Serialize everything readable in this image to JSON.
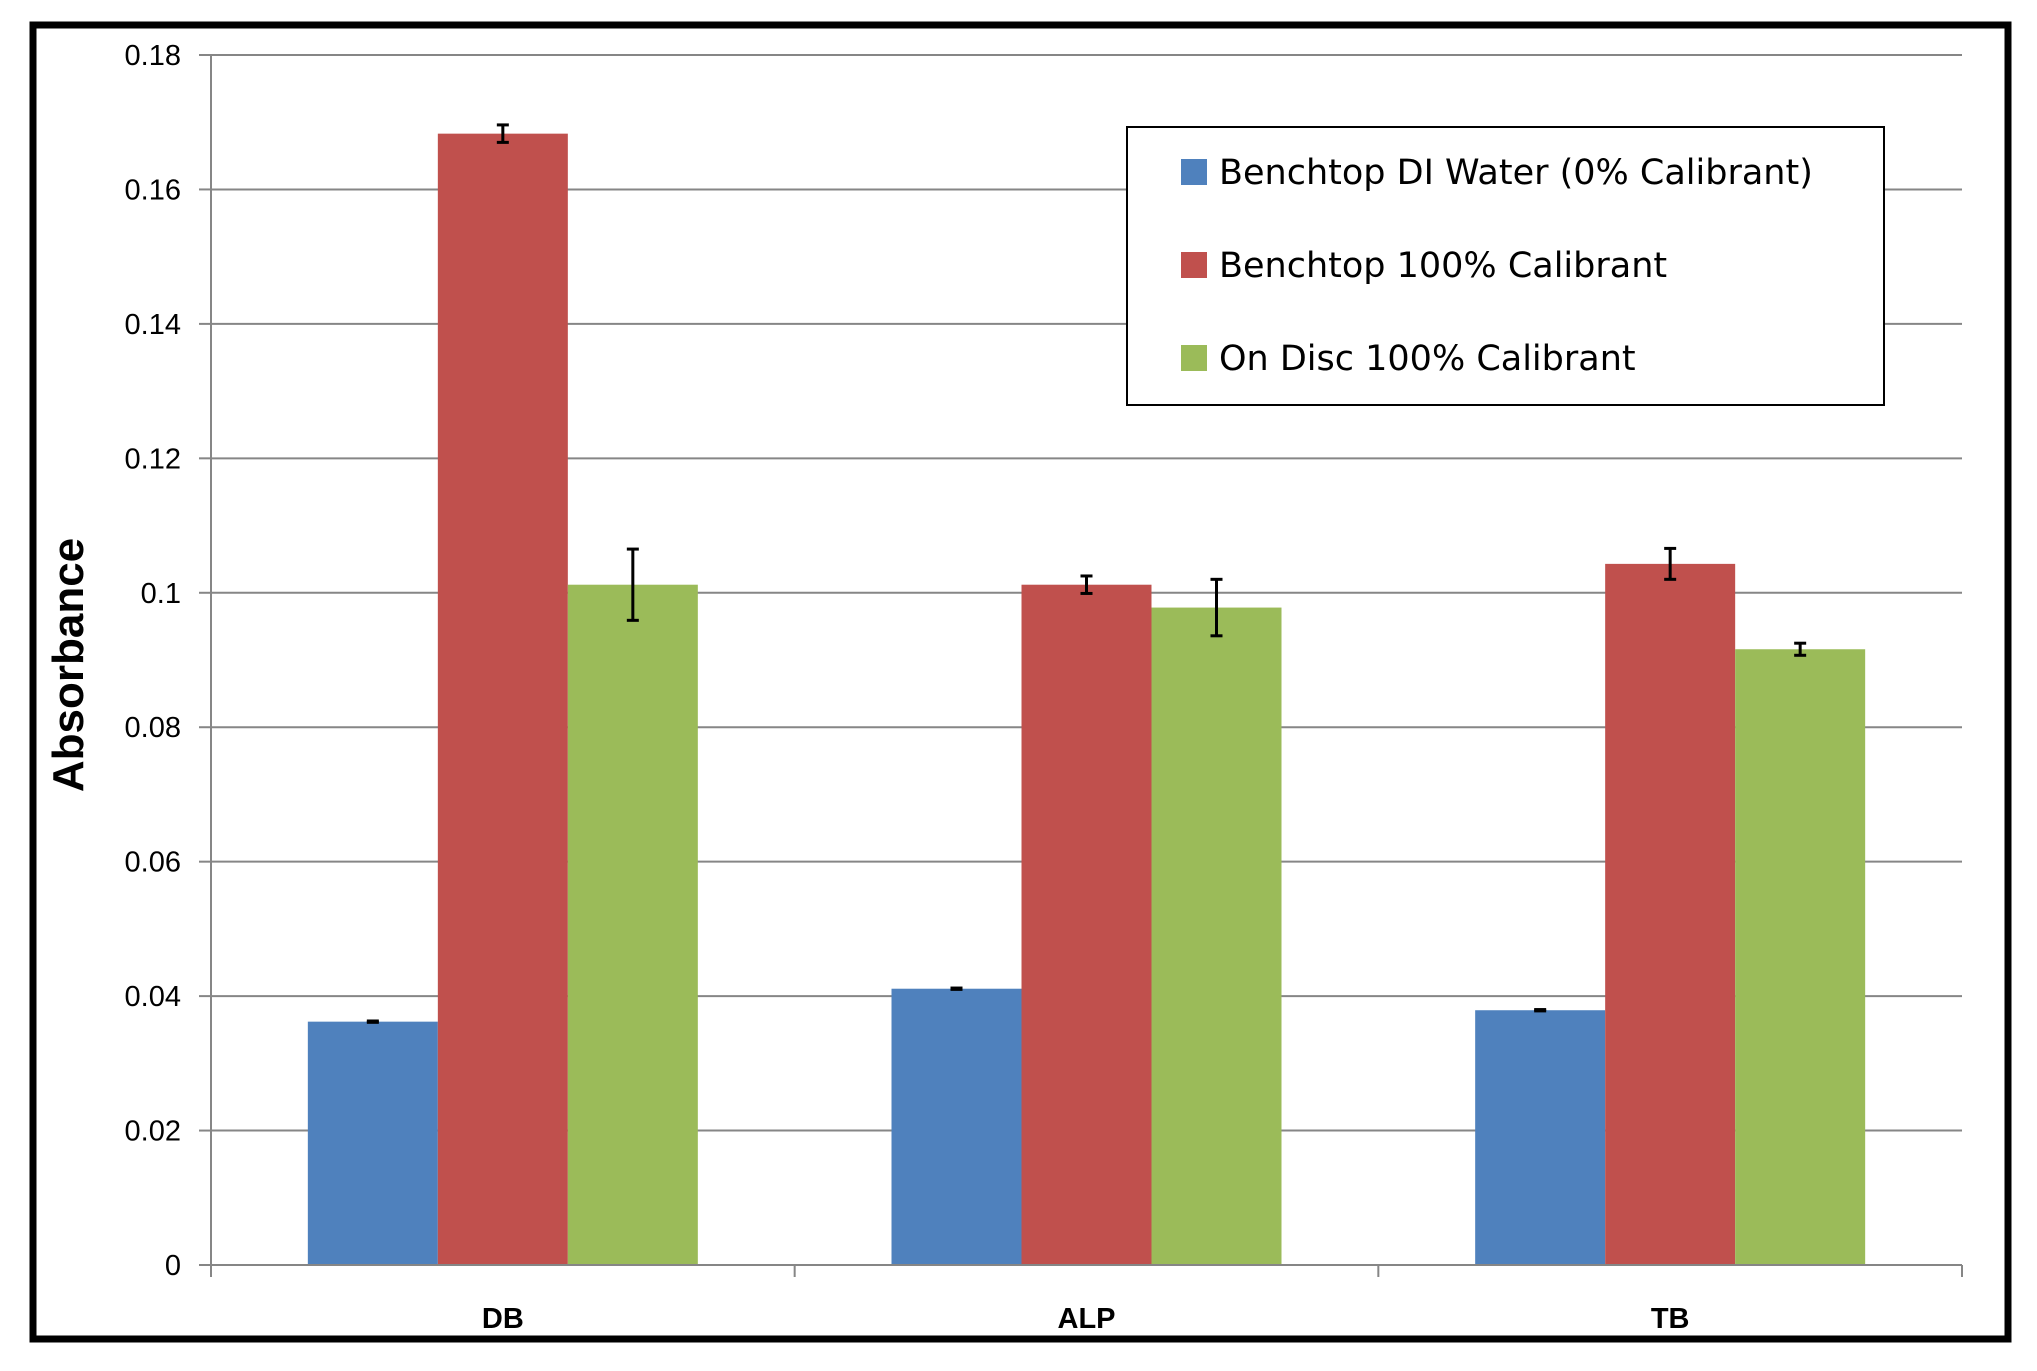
{
  "chart_data": {
    "type": "bar",
    "title": "",
    "xlabel": "",
    "ylabel": "Absorbance",
    "ylim": [
      0,
      0.18
    ],
    "yticks": [
      "0",
      "0.02",
      "0.04",
      "0.06",
      "0.08",
      "0.1",
      "0.12",
      "0.14",
      "0.16",
      "0.18"
    ],
    "grid": true,
    "legend_position": "top-right",
    "categories": [
      "DB",
      "ALP",
      "TB"
    ],
    "series": [
      {
        "name": "Benchtop DI Water (0% Calibrant)",
        "color": "#4F81BD",
        "values": [
          0.0362,
          0.0411,
          0.0379
        ],
        "errors": [
          0.0001,
          0.0001,
          0.0001
        ]
      },
      {
        "name": "Benchtop 100% Calibrant",
        "color": "#C0504D",
        "values": [
          0.1683,
          0.1012,
          0.1043
        ],
        "errors": [
          0.0013,
          0.0013,
          0.0023
        ]
      },
      {
        "name": "On Disc 100% Calibrant",
        "color": "#9BBB59",
        "values": [
          0.1012,
          0.0978,
          0.0916
        ],
        "errors": [
          0.0053,
          0.0042,
          0.0009
        ]
      }
    ]
  }
}
